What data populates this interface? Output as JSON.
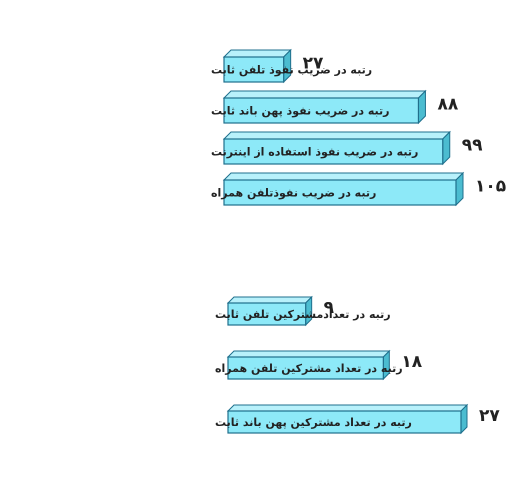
{
  "colors": {
    "front": "#8de9f8",
    "top": "#b8f1fb",
    "side": "#4bbcd0",
    "edge": "#1f6f8c"
  },
  "chart_data": [
    {
      "type": "bar",
      "orientation": "horizontal",
      "categories": [
        "رتبه در ضریب نفوذ تلفن ثابت",
        "رتبه در ضریب نفوذ پهن باند ثابت",
        "رتبه در ضریب نفوذ استفاده از اینترنت",
        "رتبه در ضریب نفوذتلفن همراه"
      ],
      "values": [
        27,
        88,
        99,
        105
      ],
      "value_labels": [
        "۲۷",
        "۸۸",
        "۹۹",
        "۱۰۵"
      ]
    },
    {
      "type": "bar",
      "orientation": "horizontal",
      "categories": [
        "رتبه در تعدادمشترکین تلفن ثابت",
        "رتبه در تعداد مشترکین تلفن همراه",
        "رتبه در تعداد مشترکین پهن باند ثابت"
      ],
      "values": [
        9,
        18,
        27
      ],
      "value_labels": [
        "۹",
        "۱۸",
        "۲۷"
      ]
    }
  ]
}
